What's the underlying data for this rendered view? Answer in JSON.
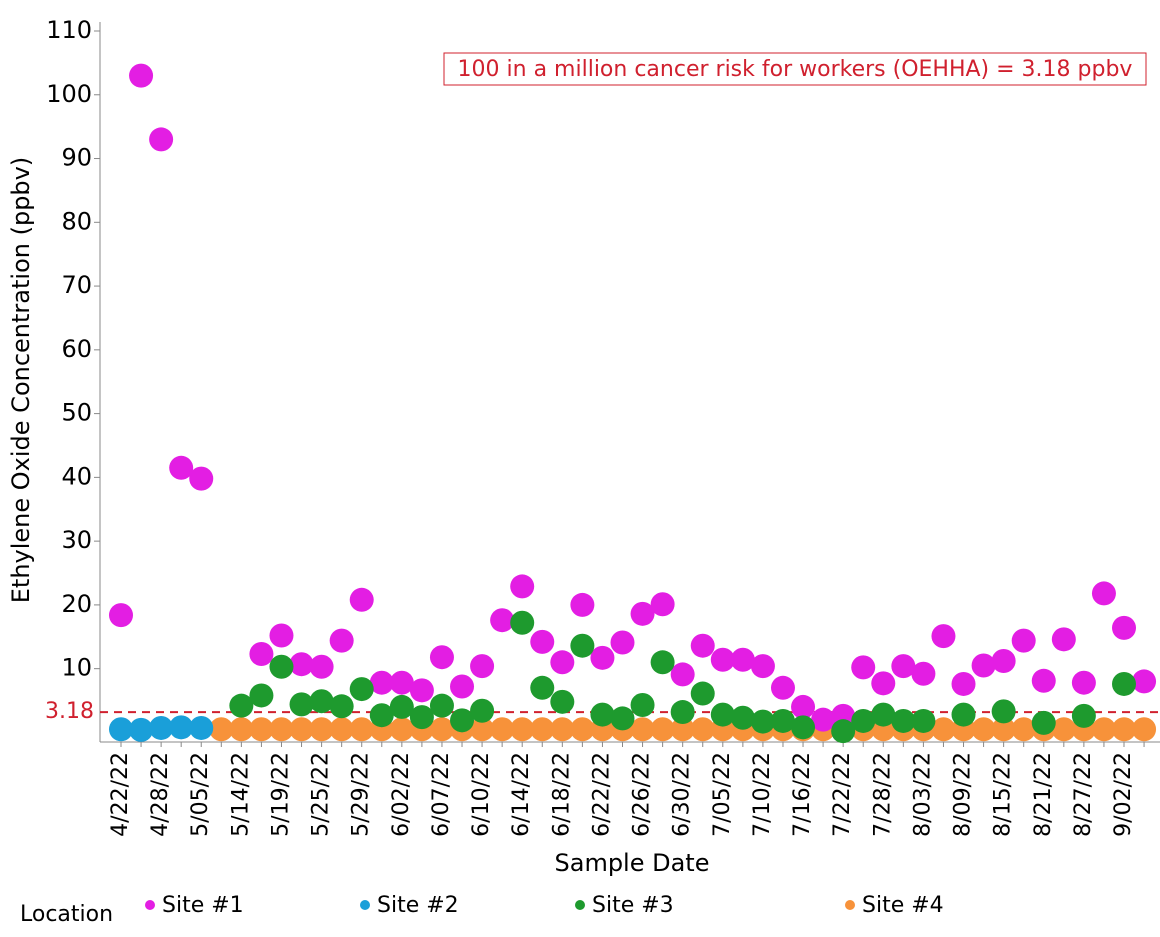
{
  "chart_data": {
    "type": "scatter",
    "y_label": "Ethylene Oxide Concentration (ppbv)",
    "x_label": "Sample Date",
    "annotation": "100 in a million cancer risk for workers (OEHHA) = 3.18 ppbv",
    "threshold": 3.18,
    "legend_title": "Location",
    "ylim": [
      -1.5,
      110
    ],
    "yticks": [
      10,
      20,
      30,
      40,
      50,
      60,
      70,
      80,
      90,
      100,
      110
    ],
    "categories": [
      "4/22/22",
      null,
      "4/28/22",
      null,
      "5/05/22",
      null,
      "5/14/22",
      null,
      "5/19/22",
      null,
      "5/25/22",
      null,
      "5/29/22",
      null,
      "6/02/22",
      null,
      "6/07/22",
      null,
      "6/10/22",
      null,
      "6/14/22",
      null,
      "6/18/22",
      null,
      "6/22/22",
      null,
      "6/26/22",
      null,
      "6/30/22",
      null,
      "7/05/22",
      null,
      "7/10/22",
      null,
      "7/16/22",
      null,
      "7/22/22",
      null,
      "7/28/22",
      null,
      "8/03/22",
      null,
      "8/09/22",
      null,
      "8/15/22",
      null,
      "8/21/22",
      null,
      "8/27/22",
      null,
      "9/02/22",
      null
    ],
    "series": [
      {
        "name": "Site #4",
        "color": "#f7923a",
        "values": [
          null,
          null,
          null,
          null,
          null,
          0.5,
          0.5,
          0.5,
          0.5,
          0.5,
          0.5,
          0.5,
          0.5,
          0.5,
          0.5,
          0.5,
          0.5,
          0.5,
          0.5,
          0.5,
          0.5,
          0.5,
          0.5,
          0.5,
          0.5,
          0.5,
          0.5,
          0.5,
          0.5,
          0.5,
          0.5,
          0.5,
          0.5,
          0.5,
          0.5,
          0.5,
          0.5,
          0.5,
          0.5,
          0.5,
          0.5,
          0.5,
          0.5,
          0.5,
          0.5,
          0.5,
          0.5,
          0.5,
          0.5,
          0.5,
          0.5,
          0.5
        ]
      },
      {
        "name": "Site #1",
        "color": "#e31ee3",
        "values": [
          18.4,
          103,
          93,
          41.5,
          39.8,
          null,
          null,
          12.3,
          15.2,
          10.7,
          10.3,
          14.4,
          20.8,
          7.8,
          7.8,
          6.6,
          11.8,
          7.2,
          10.4,
          17.6,
          22.9,
          14.2,
          11.0,
          20.0,
          11.7,
          14.1,
          18.6,
          20.1,
          9.1,
          13.6,
          11.4,
          11.4,
          10.4,
          7.0,
          4.0,
          2.0,
          2.6,
          10.2,
          7.7,
          10.4,
          9.2,
          15.1,
          7.6,
          10.5,
          11.2,
          14.4,
          8.1,
          14.6,
          7.8,
          21.8,
          16.4,
          8.0
        ]
      },
      {
        "name": "Site #2",
        "color": "#1a9fd9",
        "values": [
          0.5,
          0.4,
          0.7,
          0.8,
          0.7,
          null,
          null,
          null,
          null,
          null,
          null,
          null,
          null,
          null,
          null,
          null,
          null,
          null,
          null,
          null,
          null,
          null,
          null,
          null,
          null,
          null,
          null,
          null,
          null,
          null,
          null,
          null,
          null,
          null,
          null,
          null,
          null,
          null,
          null,
          null,
          null,
          null,
          null,
          null,
          null,
          null,
          null,
          null,
          null,
          null,
          null,
          null
        ]
      },
      {
        "name": "Site #3",
        "color": "#1e9a2e",
        "values": [
          null,
          null,
          null,
          null,
          null,
          null,
          4.2,
          5.8,
          10.3,
          4.4,
          4.9,
          4.1,
          6.8,
          2.7,
          4.0,
          2.4,
          4.2,
          1.9,
          3.4,
          null,
          17.2,
          7.0,
          4.8,
          13.6,
          2.8,
          2.2,
          4.3,
          11.0,
          3.2,
          6.1,
          2.8,
          2.3,
          1.7,
          1.8,
          0.8,
          null,
          0.2,
          1.8,
          2.8,
          1.8,
          1.8,
          null,
          2.8,
          null,
          3.3,
          null,
          1.5,
          null,
          2.6,
          null,
          7.6,
          null
        ]
      }
    ],
    "legend_order": [
      "Site #1",
      "Site #2",
      "Site #3",
      "Site #4"
    ]
  }
}
